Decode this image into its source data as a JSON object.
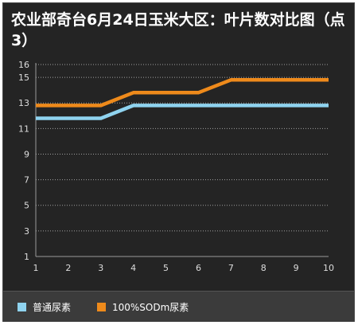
{
  "chart_data": {
    "type": "line",
    "title": "农业部奇台6月24日玉米大区：叶片数对比图（点3）",
    "x": [
      1,
      2,
      3,
      4,
      5,
      6,
      7,
      8,
      9,
      10
    ],
    "yticks": [
      1,
      3,
      5,
      7,
      9,
      11,
      13,
      15,
      16
    ],
    "ylim": [
      1,
      16
    ],
    "xlim": [
      1,
      10
    ],
    "grid": true,
    "legend_position": "bottom",
    "series": [
      {
        "name": "普通尿素",
        "color": "#8fd3ef",
        "values": [
          11.8,
          11.8,
          11.8,
          12.8,
          12.8,
          12.8,
          12.8,
          12.8,
          12.8,
          12.8
        ]
      },
      {
        "name": "100%SODm尿素",
        "color": "#ee8a1b",
        "values": [
          12.8,
          12.8,
          12.8,
          13.8,
          13.8,
          13.8,
          14.8,
          14.8,
          14.8,
          14.8
        ]
      }
    ]
  }
}
